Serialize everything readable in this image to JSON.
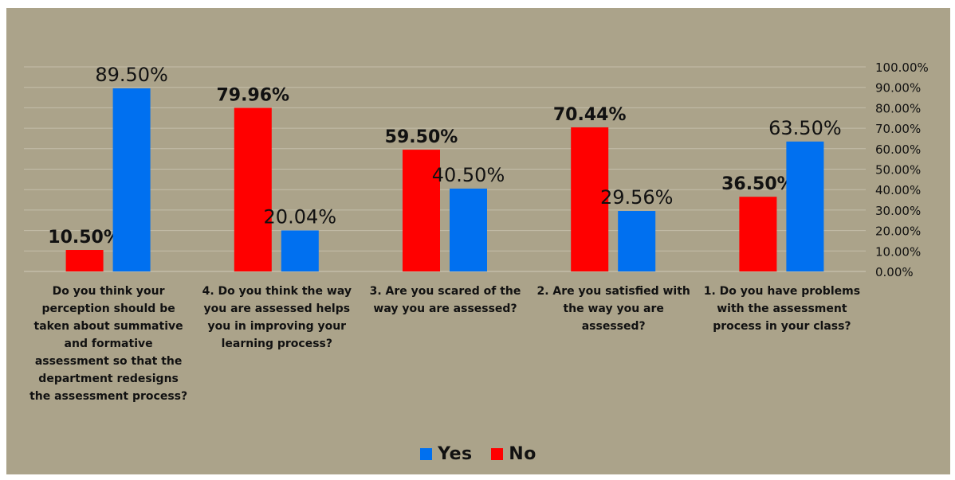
{
  "chart_data": {
    "type": "bar",
    "background": "#ABA38A",
    "categories": [
      "Do you think your perception should be taken about summative and formative assessment so that the department redesigns the assessment process?",
      "4. Do you think the way you are assessed helps you in improving your learning process?",
      "3. Are you scared of the way you are assessed?",
      "2. Are you satisfied with the way you are assessed?",
      "1. Do you have problems with the assessment process in your class?"
    ],
    "series": [
      {
        "name": "No",
        "color": "#FF0000",
        "values": [
          10.5,
          79.96,
          59.5,
          70.44,
          36.5
        ],
        "labels": [
          "10.50%",
          "79.96%",
          "59.50%",
          "70.44%",
          "36.50%"
        ]
      },
      {
        "name": "Yes",
        "color": "#0070F0",
        "values": [
          89.5,
          20.04,
          40.5,
          29.56,
          63.5
        ],
        "labels": [
          "89.50%",
          "20.04%",
          "40.50%",
          "29.56%",
          "63.50%"
        ]
      }
    ],
    "y_axis": {
      "position": "right",
      "min": 0,
      "max": 100,
      "ticks": [
        "0.00%",
        "10.00%",
        "20.00%",
        "30.00%",
        "40.00%",
        "50.00%",
        "60.00%",
        "70.00%",
        "80.00%",
        "90.00%",
        "100.00%"
      ]
    },
    "grid": true,
    "legend": {
      "position": "bottom",
      "entries": [
        {
          "name": "Yes",
          "color": "#0070F0"
        },
        {
          "name": "No",
          "color": "#FF0000"
        }
      ]
    }
  }
}
